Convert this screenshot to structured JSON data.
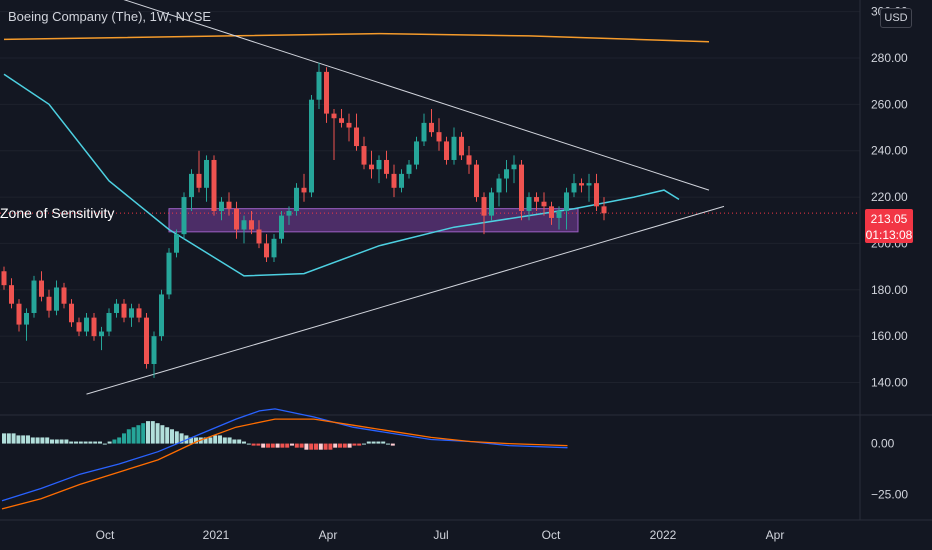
{
  "header": {
    "title": "Boeing Company (The), 1W, NYSE",
    "currency": "USD"
  },
  "annotation": "Zone of Sensitivity",
  "price_tag": {
    "price": "213.05",
    "countdown": "01:13:08"
  },
  "colors": {
    "background": "#131722",
    "up": "#26a69a",
    "down": "#ef5350",
    "ma_short": "#4dd0e1",
    "ma_long": "#f59b2b",
    "zone": "#7b3fa0",
    "trendline": "#d1d4dc",
    "macd_line": "#2962ff",
    "signal_line": "#ff6d00"
  },
  "chart_data": [
    {
      "type": "candlestick",
      "title": "Boeing Company (The), 1W, NYSE",
      "y_ticks": [
        "140.00",
        "160.00",
        "180.00",
        "200.00",
        "220.00",
        "240.00",
        "260.00",
        "280.00",
        "300.00"
      ],
      "x_ticks": [
        "Oct",
        "2021",
        "Apr",
        "Jul",
        "Oct",
        "2022",
        "Apr"
      ],
      "ylim": [
        126,
        305
      ],
      "last_price": 213.05,
      "zone_of_sensitivity": [
        205,
        215
      ],
      "trendline_upper": [
        [
          0,
          322
        ],
        [
          94,
          223
        ]
      ],
      "trendline_lower": [
        [
          11,
          135
        ],
        [
          96,
          216
        ]
      ],
      "ma_long": [
        [
          0,
          288
        ],
        [
          30,
          289.5
        ],
        [
          50,
          290.5
        ],
        [
          70,
          289.5
        ],
        [
          94,
          287
        ]
      ],
      "ma_short": [
        [
          0,
          273
        ],
        [
          6,
          260
        ],
        [
          14,
          227
        ],
        [
          22,
          206
        ],
        [
          32,
          186
        ],
        [
          40,
          187
        ],
        [
          50,
          199
        ],
        [
          60,
          207
        ],
        [
          70,
          212
        ],
        [
          76,
          215
        ],
        [
          84,
          220
        ],
        [
          88,
          223
        ],
        [
          90,
          219
        ]
      ],
      "candles": [
        {
          "o": 188,
          "h": 190,
          "l": 180,
          "c": 182
        },
        {
          "o": 182,
          "h": 185,
          "l": 172,
          "c": 174
        },
        {
          "o": 174,
          "h": 176,
          "l": 162,
          "c": 165
        },
        {
          "o": 165,
          "h": 172,
          "l": 158,
          "c": 170
        },
        {
          "o": 170,
          "h": 186,
          "l": 168,
          "c": 184
        },
        {
          "o": 184,
          "h": 188,
          "l": 175,
          "c": 177
        },
        {
          "o": 177,
          "h": 180,
          "l": 168,
          "c": 171
        },
        {
          "o": 171,
          "h": 184,
          "l": 169,
          "c": 181
        },
        {
          "o": 181,
          "h": 183,
          "l": 172,
          "c": 174
        },
        {
          "o": 174,
          "h": 176,
          "l": 164,
          "c": 166
        },
        {
          "o": 166,
          "h": 168,
          "l": 160,
          "c": 162
        },
        {
          "o": 162,
          "h": 170,
          "l": 160,
          "c": 168
        },
        {
          "o": 168,
          "h": 170,
          "l": 158,
          "c": 160
        },
        {
          "o": 160,
          "h": 164,
          "l": 154,
          "c": 162
        },
        {
          "o": 162,
          "h": 172,
          "l": 160,
          "c": 170
        },
        {
          "o": 170,
          "h": 176,
          "l": 168,
          "c": 174
        },
        {
          "o": 174,
          "h": 176,
          "l": 166,
          "c": 168
        },
        {
          "o": 168,
          "h": 174,
          "l": 164,
          "c": 172
        },
        {
          "o": 172,
          "h": 174,
          "l": 166,
          "c": 168
        },
        {
          "o": 168,
          "h": 170,
          "l": 146,
          "c": 148
        },
        {
          "o": 148,
          "h": 162,
          "l": 142,
          "c": 160
        },
        {
          "o": 160,
          "h": 180,
          "l": 158,
          "c": 178
        },
        {
          "o": 178,
          "h": 198,
          "l": 176,
          "c": 196
        },
        {
          "o": 196,
          "h": 206,
          "l": 194,
          "c": 204
        },
        {
          "o": 204,
          "h": 222,
          "l": 202,
          "c": 220
        },
        {
          "o": 220,
          "h": 232,
          "l": 214,
          "c": 230
        },
        {
          "o": 230,
          "h": 240,
          "l": 222,
          "c": 224
        },
        {
          "o": 224,
          "h": 238,
          "l": 218,
          "c": 236
        },
        {
          "o": 236,
          "h": 238,
          "l": 212,
          "c": 214
        },
        {
          "o": 214,
          "h": 220,
          "l": 210,
          "c": 218
        },
        {
          "o": 218,
          "h": 222,
          "l": 212,
          "c": 215
        },
        {
          "o": 215,
          "h": 218,
          "l": 202,
          "c": 206
        },
        {
          "o": 206,
          "h": 212,
          "l": 200,
          "c": 210
        },
        {
          "o": 210,
          "h": 214,
          "l": 204,
          "c": 206
        },
        {
          "o": 206,
          "h": 210,
          "l": 198,
          "c": 200
        },
        {
          "o": 200,
          "h": 204,
          "l": 192,
          "c": 194
        },
        {
          "o": 194,
          "h": 204,
          "l": 192,
          "c": 202
        },
        {
          "o": 202,
          "h": 214,
          "l": 200,
          "c": 212
        },
        {
          "o": 212,
          "h": 216,
          "l": 208,
          "c": 214
        },
        {
          "o": 214,
          "h": 226,
          "l": 212,
          "c": 224
        },
        {
          "o": 224,
          "h": 230,
          "l": 218,
          "c": 222
        },
        {
          "o": 222,
          "h": 264,
          "l": 220,
          "c": 262
        },
        {
          "o": 262,
          "h": 278,
          "l": 258,
          "c": 274
        },
        {
          "o": 274,
          "h": 276,
          "l": 252,
          "c": 256
        },
        {
          "o": 256,
          "h": 258,
          "l": 236,
          "c": 254
        },
        {
          "o": 254,
          "h": 258,
          "l": 250,
          "c": 252
        },
        {
          "o": 252,
          "h": 256,
          "l": 244,
          "c": 250
        },
        {
          "o": 250,
          "h": 256,
          "l": 240,
          "c": 242
        },
        {
          "o": 242,
          "h": 246,
          "l": 232,
          "c": 234
        },
        {
          "o": 234,
          "h": 240,
          "l": 228,
          "c": 232
        },
        {
          "o": 232,
          "h": 238,
          "l": 226,
          "c": 236
        },
        {
          "o": 236,
          "h": 240,
          "l": 228,
          "c": 230
        },
        {
          "o": 230,
          "h": 234,
          "l": 220,
          "c": 224
        },
        {
          "o": 224,
          "h": 232,
          "l": 222,
          "c": 230
        },
        {
          "o": 230,
          "h": 236,
          "l": 228,
          "c": 234
        },
        {
          "o": 234,
          "h": 246,
          "l": 232,
          "c": 244
        },
        {
          "o": 244,
          "h": 256,
          "l": 242,
          "c": 252
        },
        {
          "o": 252,
          "h": 258,
          "l": 246,
          "c": 248
        },
        {
          "o": 248,
          "h": 254,
          "l": 240,
          "c": 244
        },
        {
          "o": 244,
          "h": 246,
          "l": 234,
          "c": 236
        },
        {
          "o": 236,
          "h": 250,
          "l": 234,
          "c": 246
        },
        {
          "o": 246,
          "h": 248,
          "l": 236,
          "c": 238
        },
        {
          "o": 238,
          "h": 242,
          "l": 230,
          "c": 234
        },
        {
          "o": 234,
          "h": 236,
          "l": 218,
          "c": 220
        },
        {
          "o": 220,
          "h": 222,
          "l": 204,
          "c": 212
        },
        {
          "o": 212,
          "h": 224,
          "l": 210,
          "c": 222
        },
        {
          "o": 222,
          "h": 230,
          "l": 216,
          "c": 228
        },
        {
          "o": 228,
          "h": 236,
          "l": 222,
          "c": 232
        },
        {
          "o": 232,
          "h": 238,
          "l": 226,
          "c": 234
        },
        {
          "o": 234,
          "h": 236,
          "l": 210,
          "c": 214
        },
        {
          "o": 214,
          "h": 222,
          "l": 210,
          "c": 220
        },
        {
          "o": 220,
          "h": 222,
          "l": 214,
          "c": 218
        },
        {
          "o": 218,
          "h": 222,
          "l": 212,
          "c": 216
        },
        {
          "o": 216,
          "h": 218,
          "l": 208,
          "c": 211
        },
        {
          "o": 211,
          "h": 216,
          "l": 206,
          "c": 214
        },
        {
          "o": 214,
          "h": 224,
          "l": 206,
          "c": 222
        },
        {
          "o": 222,
          "h": 230,
          "l": 220,
          "c": 226
        },
        {
          "o": 226,
          "h": 228,
          "l": 222,
          "c": 225
        },
        {
          "o": 225,
          "h": 230,
          "l": 218,
          "c": 226
        },
        {
          "o": 226,
          "h": 230,
          "l": 214,
          "c": 216
        },
        {
          "o": 216,
          "h": 220,
          "l": 210,
          "c": 213
        }
      ]
    },
    {
      "type": "bar",
      "title": "MACD",
      "y_ticks": [
        "0.00",
        "−25.00"
      ],
      "ylim": [
        -35,
        14
      ],
      "histogram": [
        5,
        5,
        5,
        4,
        4,
        4,
        3,
        3,
        3,
        3,
        2,
        2,
        2,
        2,
        1,
        1,
        1,
        1,
        1,
        1,
        1,
        0,
        1,
        2,
        3,
        5,
        7,
        8,
        9,
        10,
        11,
        11,
        10,
        9,
        8,
        7,
        6,
        5,
        4,
        3,
        3,
        3,
        3,
        3,
        4,
        4,
        3,
        3,
        2,
        2,
        1,
        0,
        -1,
        -1,
        -2,
        -2,
        -2,
        -2,
        -2,
        -2,
        -1,
        -2,
        -2,
        -3,
        -3,
        -3,
        -3,
        -3,
        -3,
        -2,
        -2,
        -2,
        -2,
        -1,
        -1,
        0,
        1,
        1,
        1,
        1,
        0,
        -1
      ],
      "macd_line": [
        [
          0,
          -28
        ],
        [
          10,
          -22
        ],
        [
          20,
          -15
        ],
        [
          30,
          -10
        ],
        [
          40,
          -4
        ],
        [
          50,
          4
        ],
        [
          60,
          12
        ],
        [
          66,
          16
        ],
        [
          70,
          17
        ],
        [
          80,
          13
        ],
        [
          90,
          8
        ],
        [
          100,
          5
        ],
        [
          110,
          2
        ],
        [
          120,
          1
        ],
        [
          130,
          -1
        ],
        [
          145,
          -2
        ]
      ],
      "signal_line": [
        [
          0,
          -32
        ],
        [
          10,
          -27
        ],
        [
          20,
          -20
        ],
        [
          30,
          -14
        ],
        [
          40,
          -8
        ],
        [
          50,
          1
        ],
        [
          60,
          8
        ],
        [
          70,
          12
        ],
        [
          80,
          12
        ],
        [
          90,
          9
        ],
        [
          100,
          6
        ],
        [
          110,
          3
        ],
        [
          120,
          1
        ],
        [
          130,
          0
        ],
        [
          145,
          -1
        ]
      ]
    }
  ]
}
